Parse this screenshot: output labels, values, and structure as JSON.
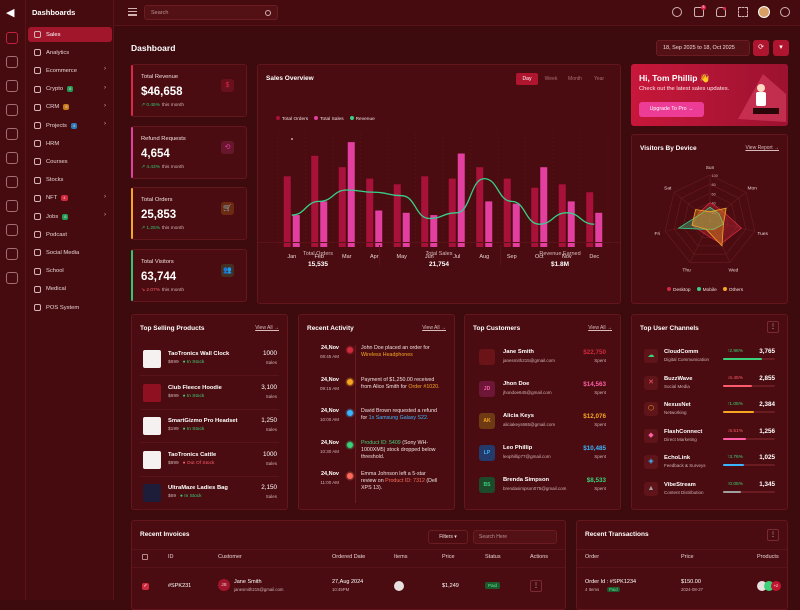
{
  "sidebar": {
    "title": "Dashboards",
    "items": [
      {
        "label": "Sales",
        "badge": "",
        "chev": false,
        "active": true
      },
      {
        "label": "Analytics",
        "badge": "",
        "chev": false
      },
      {
        "label": "Ecommerce",
        "badge": "",
        "chev": true
      },
      {
        "label": "Crypto",
        "badge": "8",
        "badgeColor": "#1f9d55",
        "chev": true
      },
      {
        "label": "CRM",
        "badge": "5",
        "badgeColor": "#c87a1a",
        "chev": true
      },
      {
        "label": "Projects",
        "badge": "4",
        "badgeColor": "#2b7bb9",
        "chev": true
      },
      {
        "label": "HRM",
        "badge": "",
        "chev": false
      },
      {
        "label": "Courses",
        "badge": "",
        "chev": false
      },
      {
        "label": "Stocks",
        "badge": "",
        "chev": false
      },
      {
        "label": "NFT",
        "badge": "4",
        "badgeColor": "#d02a3e",
        "chev": true
      },
      {
        "label": "Jobs",
        "badge": "8",
        "badgeColor": "#1f9d55",
        "chev": true
      },
      {
        "label": "Podcast",
        "badge": "",
        "chev": false
      },
      {
        "label": "Social Media",
        "badge": "",
        "chev": false
      },
      {
        "label": "School",
        "badge": "",
        "chev": false
      },
      {
        "label": "Medical",
        "badge": "",
        "chev": false
      },
      {
        "label": "POS System",
        "badge": "",
        "chev": false
      }
    ]
  },
  "topbar": {
    "search_placeholder": "Search",
    "cart_count": "5"
  },
  "header": {
    "title": "Dashboard",
    "date_range": "18, Sep 2025 to 18, Oct 2025"
  },
  "stats": [
    {
      "label": "Total Revenue",
      "value": "$46,658",
      "change": "0.45%",
      "note": "this month",
      "negative": false,
      "color": "#e0254b",
      "icon": "$"
    },
    {
      "label": "Refund Requests",
      "value": "4,654",
      "change": "4.43%",
      "note": "this month",
      "negative": false,
      "color": "#e23fa0",
      "icon": "⟲"
    },
    {
      "label": "Total Orders",
      "value": "25,853",
      "change": "1.25%",
      "note": "this month",
      "negative": false,
      "color": "#f6a623",
      "icon": "🛒"
    },
    {
      "label": "Total Visitors",
      "value": "63,744",
      "change": "2.07%",
      "note": "this month",
      "negative": true,
      "color": "#2ec774",
      "icon": "👥"
    }
  ],
  "sales_overview": {
    "title": "Sales Overview",
    "periods": [
      "Day",
      "Week",
      "Month",
      "Year"
    ],
    "active_period": "Day"
  },
  "chart_data": {
    "type": "bar",
    "categories": [
      "Jan",
      "Feb",
      "Mar",
      "Apr",
      "May",
      "Jun",
      "Jul",
      "Aug",
      "Sep",
      "Oct",
      "Nov",
      "Dec"
    ],
    "series": [
      {
        "name": "Total Orders",
        "type": "bar",
        "color": "#a8123a",
        "values": [
          62,
          80,
          70,
          60,
          55,
          62,
          60,
          70,
          60,
          52,
          55,
          48
        ]
      },
      {
        "name": "Total Sales",
        "type": "bar",
        "color": "#e23fa0",
        "values": [
          28,
          40,
          92,
          32,
          30,
          28,
          82,
          40,
          38,
          70,
          40,
          30
        ]
      },
      {
        "name": "Revenue",
        "type": "line",
        "color": "#37d089",
        "values": [
          28,
          40,
          50,
          48,
          45,
          25,
          30,
          60,
          40,
          20,
          30,
          20
        ]
      }
    ],
    "ylim": [
      0,
      100
    ]
  },
  "sales_summary": [
    {
      "label": "Total Orders",
      "value": "15,535"
    },
    {
      "label": "Total Sales",
      "value": "21,754"
    },
    {
      "label": "Revenue Earned",
      "value": "$1.8M"
    }
  ],
  "promo": {
    "greeting": "Hi, Tom Phillip 👋",
    "text": "Check out the latest sales updates.",
    "button": "Upgrade To Pro →"
  },
  "visitors": {
    "title": "Visitors By Device",
    "view": "View Report →",
    "axes": [
      "Sun",
      "Mon",
      "Tues",
      "Wed",
      "Thu",
      "Fri",
      "Sat"
    ],
    "ticks": [
      "100",
      "80",
      "60",
      "40",
      "20"
    ],
    "series": [
      {
        "name": "Desktop",
        "color": "#d02a3e",
        "values": [
          40,
          35,
          70,
          55,
          30,
          40,
          30
        ]
      },
      {
        "name": "Mobile",
        "color": "#37d089",
        "values": [
          30,
          25,
          30,
          20,
          20,
          70,
          25
        ]
      },
      {
        "name": "Others",
        "color": "#f6a623",
        "values": [
          20,
          45,
          30,
          60,
          20,
          40,
          40
        ]
      }
    ]
  },
  "top_selling": {
    "title": "Top Selling Products",
    "view": "View All →",
    "items": [
      {
        "name": "TaoTronics Wall Clock",
        "price": "$699",
        "stock": "In Stock",
        "instock": true,
        "sales": "1000",
        "sales_label": "Sales"
      },
      {
        "name": "Club Fleece Hoodie",
        "price": "$699",
        "stock": "In Stock",
        "instock": true,
        "sales": "3,100",
        "sales_label": "Sales"
      },
      {
        "name": "SmartGizmo Pro Headset",
        "price": "$199",
        "stock": "In Stock",
        "instock": true,
        "sales": "1,250",
        "sales_label": "Sales"
      },
      {
        "name": "TaoTronics Cattle",
        "price": "$899",
        "stock": "Out Of Stock",
        "instock": false,
        "sales": "1000",
        "sales_label": "Sales"
      },
      {
        "name": "UltraMaze Ladies Bag",
        "price": "$69",
        "stock": "In Stock",
        "instock": true,
        "sales": "2,150",
        "sales_label": "Sales"
      }
    ]
  },
  "activity": {
    "title": "Recent Activity",
    "view": "View All →",
    "items": [
      {
        "date": "24,Nov",
        "time": "08:45 AM",
        "color": "#d02a3e",
        "pre": "John Doe placed an order for ",
        "hl": "Wireless Headphones",
        "post": ""
      },
      {
        "date": "24,Nov",
        "time": "09:15 AM",
        "color": "#f6a623",
        "pre": "Payment of $1,250.00 received from Alice Smith for ",
        "hl": "Order #1020.",
        "post": ""
      },
      {
        "date": "24,Nov",
        "time": "10:00 AM",
        "color": "#3bb5ff",
        "pre": "David Brown requested a refund for ",
        "hl": "1x Samsung Galaxy S22.",
        "post": ""
      },
      {
        "date": "24,Nov",
        "time": "10:30 AM",
        "color": "#3cd07a",
        "pre": "",
        "hl": "Product ID: 5409",
        "post": " (Sony WH-1000XM5) stock dropped below threshold."
      },
      {
        "date": "24,Nov",
        "time": "11:00 AM",
        "color": "#ff6b5b",
        "pre": "Emma Johnson left a 5-star review on ",
        "hl": "Product ID: 7312",
        "post": " (Dell XPS 13)."
      }
    ]
  },
  "customers": {
    "title": "Top Customers",
    "view": "View All →",
    "items": [
      {
        "initials": "",
        "name": "Jane Smith",
        "email": "janesmith215@gmail.com",
        "value": "$22,750",
        "spent": "Spent",
        "color": "#d02a3e",
        "bg": "#6a1418",
        "fg": "#d02a3e"
      },
      {
        "initials": "JD",
        "name": "Jhon Doe",
        "email": "jhondoe645@gmail.com",
        "value": "$14,563",
        "spent": "Spent",
        "color": "#ff5fa8",
        "bg": "#6e1637",
        "fg": "#ff5fa8"
      },
      {
        "initials": "AK",
        "name": "Alicia Keys",
        "email": "aliciakeys665@gmail.com",
        "value": "$12,076",
        "spent": "Spent",
        "color": "#f6a623",
        "bg": "#6e3a14",
        "fg": "#f6a623"
      },
      {
        "initials": "LP",
        "name": "Leo Phillip",
        "email": "leophillip77@gmail.com",
        "value": "$10,485",
        "spent": "Spent",
        "color": "#3bb5ff",
        "bg": "#233a6a",
        "fg": "#3bb5ff"
      },
      {
        "initials": "BS",
        "name": "Brenda Simpson",
        "email": "brendasimpson075@gmail.com",
        "value": "$8,533",
        "spent": "Spent",
        "color": "#3cd07a",
        "bg": "#1c4a2a",
        "fg": "#3cd07a"
      }
    ]
  },
  "channels": {
    "title": "Top User Channels",
    "items": [
      {
        "name": "CloudComm",
        "sub": "Digital Communication",
        "pct": "2.96%",
        "up": true,
        "value": "3,765",
        "color": "#3cd07a",
        "fill": 0.75,
        "icon": "☁"
      },
      {
        "name": "BuzzWave",
        "sub": "Social Media",
        "pct": "6.45%",
        "up": false,
        "value": "2,855",
        "color": "#ff5b6e",
        "fill": 0.55,
        "icon": "✕"
      },
      {
        "name": "NexusNet",
        "sub": "Networking",
        "pct": "1.05%",
        "up": true,
        "value": "2,384",
        "color": "#f6a623",
        "fill": 0.6,
        "icon": "⬡"
      },
      {
        "name": "FlashConnect",
        "sub": "Direct Marketing",
        "pct": "5.51%",
        "up": false,
        "value": "1,256",
        "color": "#ff5fa8",
        "fill": 0.45,
        "icon": "◆"
      },
      {
        "name": "EchoLink",
        "sub": "Feedback & Surveys",
        "pct": "3.76%",
        "up": true,
        "value": "1,025",
        "color": "#3bb5ff",
        "fill": 0.4,
        "icon": "◈"
      },
      {
        "name": "VibeStream",
        "sub": "Content Distribution",
        "pct": "0.05%",
        "up": true,
        "value": "1,345",
        "color": "#a0a0a0",
        "fill": 0.35,
        "icon": "▲"
      }
    ]
  },
  "invoices": {
    "title": "Recent Invoices",
    "filters": "Filters",
    "search_placeholder": "Search Here",
    "columns": [
      "ID",
      "Customer",
      "Ordered Date",
      "Items",
      "Price",
      "Status",
      "Actions"
    ],
    "row": {
      "id": "#SPK231",
      "initials": "JS",
      "name": "Jane Smith",
      "email": "janesmith215@gmail.com",
      "date": "27,Aug 2024",
      "time": "10:45PM",
      "price": "$1,249",
      "status": "Paid"
    }
  },
  "transactions": {
    "title": "Recent Transactions",
    "columns": [
      "Order",
      "Price",
      "Products"
    ],
    "row": {
      "order": "Order Id : #SPK1234",
      "items": "4 Items",
      "status": "Paid",
      "price": "$150.00",
      "date": "2024-08-27",
      "more": "+2"
    }
  }
}
